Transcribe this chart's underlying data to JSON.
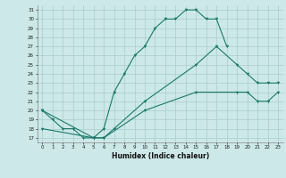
{
  "line1_x": [
    0,
    1,
    2,
    3,
    4,
    5,
    6,
    7,
    8,
    9,
    10,
    11,
    12,
    13,
    14,
    15,
    16,
    17,
    18
  ],
  "line1_y": [
    20,
    19,
    18,
    18,
    17,
    17,
    18,
    22,
    24,
    26,
    27,
    29,
    30,
    30,
    31,
    31,
    30,
    30,
    27
  ],
  "line2_x": [
    0,
    5,
    6,
    7,
    10,
    15,
    17,
    19,
    20,
    21,
    22,
    23
  ],
  "line2_y": [
    20,
    17,
    17,
    18,
    21,
    25,
    27,
    25,
    24,
    23,
    23,
    23
  ],
  "line3_x": [
    0,
    5,
    6,
    10,
    15,
    19,
    20,
    21,
    22,
    23
  ],
  "line3_y": [
    18,
    17,
    17,
    20,
    22,
    22,
    22,
    21,
    21,
    22
  ],
  "line_color": "#1a7a6a",
  "bg_color": "#cce8e8",
  "grid_color": "#aacccc",
  "xlabel": "Humidex (Indice chaleur)",
  "xlim": [
    -0.5,
    23.5
  ],
  "ylim": [
    16.5,
    31.5
  ],
  "xticks": [
    0,
    1,
    2,
    3,
    4,
    5,
    6,
    7,
    8,
    9,
    10,
    11,
    12,
    13,
    14,
    15,
    16,
    17,
    18,
    19,
    20,
    21,
    22,
    23
  ],
  "yticks": [
    17,
    18,
    19,
    20,
    21,
    22,
    23,
    24,
    25,
    26,
    27,
    28,
    29,
    30,
    31
  ]
}
